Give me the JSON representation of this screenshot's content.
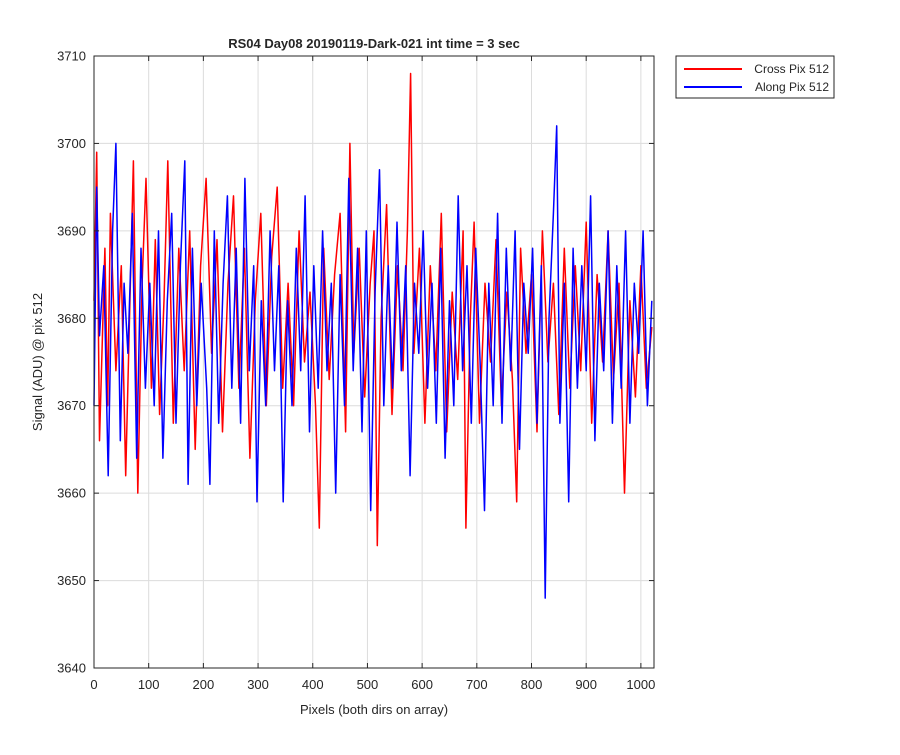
{
  "colors": {
    "cross": "#ff0000",
    "along": "#0000ff",
    "grid": "#dcdcdc",
    "axis": "#262626"
  },
  "chart_data": {
    "type": "line",
    "title": "RS04 Day08 20190119-Dark-021 int time = 3 sec",
    "xlabel": "Pixels (both dirs on array)",
    "ylabel": "Signal (ADU) @ pix 512",
    "xlim": [
      0,
      1024
    ],
    "ylim": [
      3640,
      3710
    ],
    "xticks": [
      0,
      100,
      200,
      300,
      400,
      500,
      600,
      700,
      800,
      900,
      1000
    ],
    "yticks": [
      3640,
      3650,
      3660,
      3670,
      3680,
      3690,
      3700,
      3710
    ],
    "grid": true,
    "legend_position": "outside-top-right",
    "series": [
      {
        "name": "Cross Pix 512",
        "color": "#ff0000",
        "points": [
          [
            0,
            3682
          ],
          [
            5,
            3699
          ],
          [
            10,
            3666
          ],
          [
            20,
            3688
          ],
          [
            25,
            3670
          ],
          [
            30,
            3692
          ],
          [
            40,
            3674
          ],
          [
            50,
            3686
          ],
          [
            58,
            3662
          ],
          [
            65,
            3680
          ],
          [
            72,
            3698
          ],
          [
            80,
            3660
          ],
          [
            88,
            3684
          ],
          [
            95,
            3696
          ],
          [
            105,
            3672
          ],
          [
            112,
            3689
          ],
          [
            120,
            3669
          ],
          [
            128,
            3682
          ],
          [
            135,
            3698
          ],
          [
            145,
            3668
          ],
          [
            155,
            3688
          ],
          [
            165,
            3674
          ],
          [
            175,
            3690
          ],
          [
            185,
            3665
          ],
          [
            195,
            3686
          ],
          [
            205,
            3696
          ],
          [
            215,
            3676
          ],
          [
            225,
            3689
          ],
          [
            235,
            3667
          ],
          [
            245,
            3684
          ],
          [
            255,
            3694
          ],
          [
            265,
            3672
          ],
          [
            275,
            3688
          ],
          [
            285,
            3664
          ],
          [
            295,
            3682
          ],
          [
            305,
            3692
          ],
          [
            315,
            3670
          ],
          [
            325,
            3687
          ],
          [
            335,
            3695
          ],
          [
            345,
            3672
          ],
          [
            355,
            3684
          ],
          [
            365,
            3670
          ],
          [
            375,
            3690
          ],
          [
            385,
            3675
          ],
          [
            395,
            3683
          ],
          [
            405,
            3670
          ],
          [
            412,
            3656
          ],
          [
            420,
            3688
          ],
          [
            430,
            3673
          ],
          [
            440,
            3685
          ],
          [
            450,
            3692
          ],
          [
            460,
            3667
          ],
          [
            468,
            3700
          ],
          [
            475,
            3676
          ],
          [
            485,
            3688
          ],
          [
            495,
            3671
          ],
          [
            505,
            3684
          ],
          [
            512,
            3690
          ],
          [
            518,
            3654
          ],
          [
            525,
            3680
          ],
          [
            535,
            3693
          ],
          [
            545,
            3669
          ],
          [
            555,
            3686
          ],
          [
            565,
            3674
          ],
          [
            573,
            3690
          ],
          [
            579,
            3708
          ],
          [
            585,
            3676
          ],
          [
            595,
            3688
          ],
          [
            605,
            3668
          ],
          [
            615,
            3686
          ],
          [
            625,
            3674
          ],
          [
            635,
            3692
          ],
          [
            645,
            3667
          ],
          [
            655,
            3683
          ],
          [
            665,
            3673
          ],
          [
            675,
            3690
          ],
          [
            680,
            3656
          ],
          [
            688,
            3680
          ],
          [
            695,
            3691
          ],
          [
            705,
            3668
          ],
          [
            715,
            3684
          ],
          [
            725,
            3675
          ],
          [
            735,
            3689
          ],
          [
            745,
            3670
          ],
          [
            755,
            3683
          ],
          [
            765,
            3673
          ],
          [
            773,
            3659
          ],
          [
            780,
            3688
          ],
          [
            790,
            3676
          ],
          [
            800,
            3685
          ],
          [
            810,
            3667
          ],
          [
            820,
            3690
          ],
          [
            830,
            3675
          ],
          [
            840,
            3684
          ],
          [
            850,
            3669
          ],
          [
            860,
            3688
          ],
          [
            870,
            3672
          ],
          [
            880,
            3686
          ],
          [
            890,
            3674
          ],
          [
            900,
            3691
          ],
          [
            910,
            3668
          ],
          [
            920,
            3685
          ],
          [
            930,
            3675
          ],
          [
            940,
            3690
          ],
          [
            950,
            3673
          ],
          [
            960,
            3684
          ],
          [
            970,
            3660
          ],
          [
            980,
            3682
          ],
          [
            990,
            3671
          ],
          [
            1000,
            3686
          ],
          [
            1010,
            3672
          ],
          [
            1020,
            3679
          ]
        ]
      },
      {
        "name": "Along Pix 512",
        "color": "#0000ff",
        "points": [
          [
            0,
            3670
          ],
          [
            5,
            3695
          ],
          [
            10,
            3678
          ],
          [
            18,
            3686
          ],
          [
            26,
            3662
          ],
          [
            34,
            3690
          ],
          [
            40,
            3700
          ],
          [
            48,
            3666
          ],
          [
            55,
            3684
          ],
          [
            62,
            3676
          ],
          [
            70,
            3692
          ],
          [
            78,
            3664
          ],
          [
            86,
            3688
          ],
          [
            94,
            3672
          ],
          [
            102,
            3684
          ],
          [
            110,
            3670
          ],
          [
            118,
            3690
          ],
          [
            126,
            3664
          ],
          [
            134,
            3682
          ],
          [
            142,
            3692
          ],
          [
            150,
            3668
          ],
          [
            158,
            3686
          ],
          [
            166,
            3698
          ],
          [
            172,
            3661
          ],
          [
            180,
            3688
          ],
          [
            188,
            3670
          ],
          [
            196,
            3684
          ],
          [
            206,
            3672
          ],
          [
            212,
            3661
          ],
          [
            220,
            3690
          ],
          [
            228,
            3668
          ],
          [
            236,
            3684
          ],
          [
            244,
            3694
          ],
          [
            252,
            3672
          ],
          [
            260,
            3688
          ],
          [
            268,
            3668
          ],
          [
            276,
            3696
          ],
          [
            284,
            3674
          ],
          [
            292,
            3686
          ],
          [
            298,
            3659
          ],
          [
            306,
            3682
          ],
          [
            314,
            3670
          ],
          [
            322,
            3690
          ],
          [
            330,
            3674
          ],
          [
            338,
            3686
          ],
          [
            346,
            3659
          ],
          [
            354,
            3682
          ],
          [
            362,
            3670
          ],
          [
            370,
            3688
          ],
          [
            378,
            3674
          ],
          [
            386,
            3694
          ],
          [
            394,
            3667
          ],
          [
            402,
            3686
          ],
          [
            410,
            3672
          ],
          [
            418,
            3690
          ],
          [
            426,
            3674
          ],
          [
            434,
            3684
          ],
          [
            442,
            3660
          ],
          [
            450,
            3685
          ],
          [
            458,
            3670
          ],
          [
            466,
            3696
          ],
          [
            474,
            3674
          ],
          [
            482,
            3688
          ],
          [
            490,
            3667
          ],
          [
            498,
            3690
          ],
          [
            506,
            3658
          ],
          [
            514,
            3683
          ],
          [
            522,
            3697
          ],
          [
            530,
            3670
          ],
          [
            538,
            3686
          ],
          [
            546,
            3672
          ],
          [
            554,
            3691
          ],
          [
            562,
            3674
          ],
          [
            570,
            3686
          ],
          [
            578,
            3662
          ],
          [
            586,
            3684
          ],
          [
            594,
            3676
          ],
          [
            602,
            3690
          ],
          [
            610,
            3672
          ],
          [
            618,
            3684
          ],
          [
            626,
            3668
          ],
          [
            634,
            3688
          ],
          [
            642,
            3664
          ],
          [
            650,
            3682
          ],
          [
            658,
            3670
          ],
          [
            666,
            3694
          ],
          [
            674,
            3674
          ],
          [
            682,
            3686
          ],
          [
            690,
            3668
          ],
          [
            698,
            3688
          ],
          [
            706,
            3675
          ],
          [
            714,
            3658
          ],
          [
            722,
            3684
          ],
          [
            730,
            3670
          ],
          [
            738,
            3692
          ],
          [
            746,
            3668
          ],
          [
            754,
            3688
          ],
          [
            762,
            3674
          ],
          [
            770,
            3690
          ],
          [
            778,
            3665
          ],
          [
            786,
            3684
          ],
          [
            794,
            3676
          ],
          [
            802,
            3688
          ],
          [
            810,
            3668
          ],
          [
            818,
            3686
          ],
          [
            825,
            3648
          ],
          [
            832,
            3680
          ],
          [
            840,
            3692
          ],
          [
            846,
            3702
          ],
          [
            852,
            3668
          ],
          [
            860,
            3684
          ],
          [
            868,
            3659
          ],
          [
            876,
            3688
          ],
          [
            884,
            3672
          ],
          [
            892,
            3686
          ],
          [
            900,
            3674
          ],
          [
            908,
            3694
          ],
          [
            916,
            3666
          ],
          [
            924,
            3684
          ],
          [
            932,
            3674
          ],
          [
            940,
            3690
          ],
          [
            948,
            3668
          ],
          [
            956,
            3686
          ],
          [
            964,
            3672
          ],
          [
            972,
            3690
          ],
          [
            980,
            3668
          ],
          [
            988,
            3684
          ],
          [
            996,
            3676
          ],
          [
            1004,
            3690
          ],
          [
            1012,
            3670
          ],
          [
            1020,
            3682
          ]
        ]
      }
    ]
  }
}
